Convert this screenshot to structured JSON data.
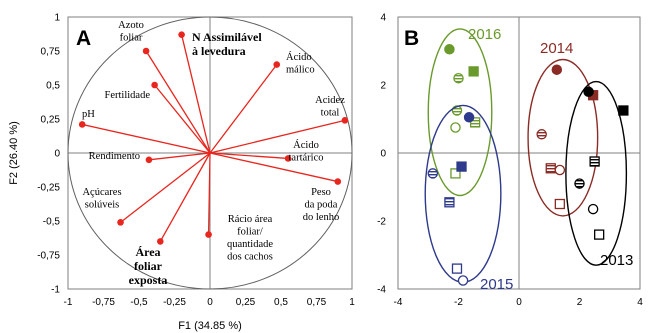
{
  "chart_data": [
    {
      "type": "scatter",
      "panel_label": "A",
      "xlabel": "F1 (34.85 %)",
      "ylabel": "F2 (26.40 %)",
      "xlim": [
        -1,
        1
      ],
      "ylim": [
        -1,
        1
      ],
      "x_ticks": [
        "-1",
        "-0,75",
        "-0,5",
        "-0,25",
        "0",
        "0,25",
        "0,5",
        "0,75",
        "1"
      ],
      "y_ticks": [
        "1",
        "0,75",
        "0,5",
        "0,25",
        "0",
        "-0,25",
        "-0,5",
        "-0,75",
        "-1"
      ],
      "correlation_circle": true,
      "vectors": [
        {
          "label": [
            "N Assimilável",
            "à levedura"
          ],
          "bold": true,
          "x": -0.2,
          "y": 0.87
        },
        {
          "label": [
            "Azoto",
            "foliar"
          ],
          "bold": false,
          "x": -0.45,
          "y": 0.75
        },
        {
          "label": [
            "Fertilidade"
          ],
          "bold": false,
          "x": -0.39,
          "y": 0.5
        },
        {
          "label": [
            "Ácido",
            "málico"
          ],
          "bold": false,
          "x": 0.47,
          "y": 0.65
        },
        {
          "label": [
            "pH"
          ],
          "bold": false,
          "x": -0.9,
          "y": 0.21
        },
        {
          "label": [
            "Acidez",
            "total"
          ],
          "bold": false,
          "x": 0.95,
          "y": 0.24
        },
        {
          "label": [
            "Rendimento"
          ],
          "bold": false,
          "x": -0.43,
          "y": -0.05
        },
        {
          "label": [
            "Ácido",
            "tartárico"
          ],
          "bold": false,
          "x": 0.55,
          "y": -0.04
        },
        {
          "label": [
            "Açúcares",
            "solúveis"
          ],
          "bold": false,
          "x": -0.63,
          "y": -0.51
        },
        {
          "label": [
            "Peso",
            "da poda",
            "do lenho"
          ],
          "bold": false,
          "x": 0.9,
          "y": -0.21
        },
        {
          "label": [
            "Rácio área",
            "foliar/",
            "quantidade",
            "dos cachos"
          ],
          "bold": false,
          "x": -0.01,
          "y": -0.6
        },
        {
          "label": [
            "Área",
            "foliar",
            "exposta"
          ],
          "bold": true,
          "x": -0.35,
          "y": -0.65
        }
      ]
    },
    {
      "type": "scatter",
      "panel_label": "B",
      "xlim": [
        -4,
        4
      ],
      "ylim": [
        -4,
        4
      ],
      "x_ticks": [
        "-4",
        "-2",
        "0",
        "2",
        "4"
      ],
      "y_ticks": [
        "4",
        "2",
        "0",
        "-2",
        "-4"
      ],
      "groups": [
        {
          "name": "2016",
          "color": "#6a9a2c",
          "ellipse": {
            "cx": -1.95,
            "cy": 1.2,
            "rx": 1.05,
            "ry": 2.45
          },
          "points": [
            {
              "x": -2.3,
              "y": 3.05,
              "style": "filled-circle"
            },
            {
              "x": -1.5,
              "y": 2.4,
              "style": "filled-square"
            },
            {
              "x": -2.0,
              "y": 2.2,
              "style": "striped-circle"
            },
            {
              "x": -2.05,
              "y": 1.25,
              "style": "striped-circle"
            },
            {
              "x": -1.45,
              "y": 0.9,
              "style": "striped-square"
            },
            {
              "x": -2.1,
              "y": 0.75,
              "style": "open-circle"
            },
            {
              "x": -2.1,
              "y": -0.6,
              "style": "open-square"
            }
          ]
        },
        {
          "name": "2015",
          "color": "#2e3a8c",
          "ellipse": {
            "cx": -1.85,
            "cy": -1.2,
            "rx": 1.25,
            "ry": 2.6
          },
          "points": [
            {
              "x": -1.65,
              "y": 1.05,
              "style": "filled-circle"
            },
            {
              "x": -1.9,
              "y": -0.4,
              "style": "filled-square"
            },
            {
              "x": -2.85,
              "y": -0.6,
              "style": "striped-circle"
            },
            {
              "x": -2.3,
              "y": -1.45,
              "style": "striped-square"
            },
            {
              "x": -2.05,
              "y": -3.4,
              "style": "open-square"
            },
            {
              "x": -1.85,
              "y": -3.75,
              "style": "open-circle"
            }
          ]
        },
        {
          "name": "2014",
          "color": "#8b2b25",
          "ellipse": {
            "cx": 1.45,
            "cy": 0.45,
            "rx": 1.15,
            "ry": 2.3
          },
          "points": [
            {
              "x": 1.25,
              "y": 2.45,
              "style": "filled-circle"
            },
            {
              "x": 2.45,
              "y": 1.7,
              "style": "filled-square"
            },
            {
              "x": 0.75,
              "y": 0.55,
              "style": "striped-circle"
            },
            {
              "x": 1.05,
              "y": -0.45,
              "style": "striped-square"
            },
            {
              "x": 1.35,
              "y": -0.5,
              "style": "open-circle"
            },
            {
              "x": 1.35,
              "y": -1.5,
              "style": "open-square"
            }
          ]
        },
        {
          "name": "2013",
          "color": "#000000",
          "ellipse": {
            "cx": 2.55,
            "cy": -0.6,
            "rx": 1.0,
            "ry": 2.7
          },
          "points": [
            {
              "x": 2.3,
              "y": 1.8,
              "style": "filled-circle"
            },
            {
              "x": 3.45,
              "y": 1.25,
              "style": "filled-square"
            },
            {
              "x": 2.5,
              "y": -0.25,
              "style": "striped-square"
            },
            {
              "x": 2.0,
              "y": -0.9,
              "style": "striped-circle"
            },
            {
              "x": 2.45,
              "y": -1.65,
              "style": "open-circle"
            },
            {
              "x": 2.65,
              "y": -2.4,
              "style": "open-square"
            }
          ]
        }
      ]
    }
  ],
  "colors": {
    "vector": "#e8261e",
    "axis": "#808080",
    "circle": "#606060"
  }
}
